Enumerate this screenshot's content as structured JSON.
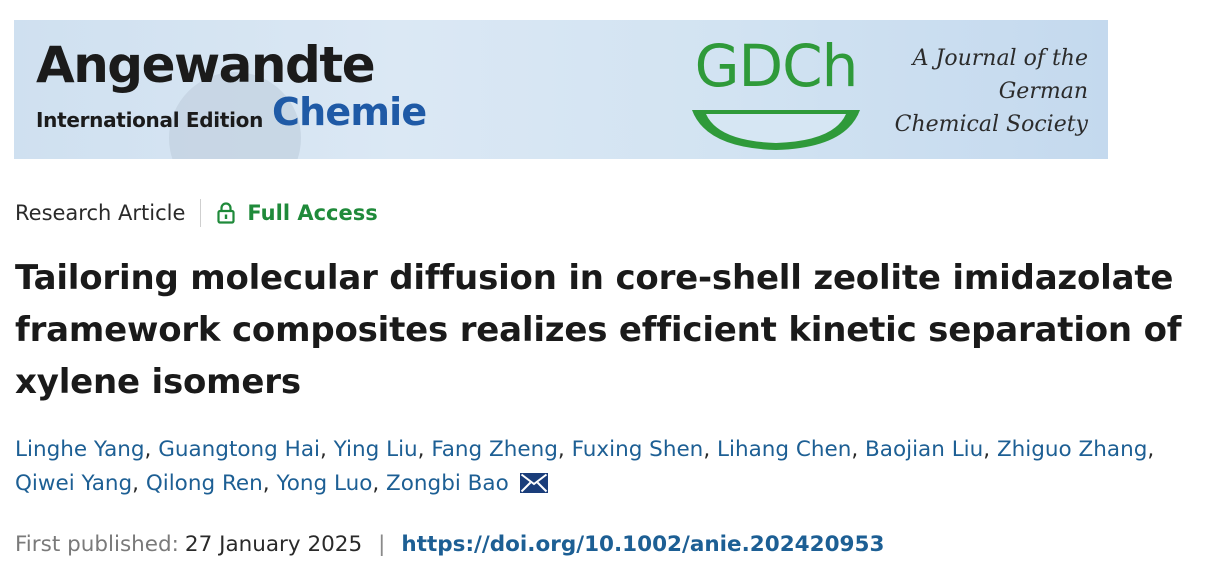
{
  "banner": {
    "journal_title": "Angewandte",
    "journal_edition": "International Edition",
    "journal_subtitle": "Chemie",
    "society_logo": "GDCh",
    "society_line1": "A Journal of the",
    "society_line2": "German",
    "society_line3": "Chemical Society",
    "brand_green": "#2f9a3a",
    "brand_blue": "#1f5aa6"
  },
  "article": {
    "type": "Research Article",
    "access_label": "Full Access",
    "access_icon": "lock-open-icon",
    "title": "Tailoring molecular diffusion in core-shell zeolite imidazolate framework composites realizes efficient kinetic separation of xylene isomers",
    "authors": [
      "Linghe Yang",
      "Guangtong Hai",
      "Ying Liu",
      "Fang Zheng",
      "Fuxing Shen",
      "Lihang Chen",
      "Baojian Liu",
      "Zhiguo Zhang",
      "Qiwei Yang",
      "Qilong Ren",
      "Yong Luo",
      "Zongbi Bao"
    ],
    "corresponding_icon": "envelope-icon",
    "published_label": "First published:",
    "published_date": "27 January 2025",
    "separator": "|",
    "doi": "https://doi.org/10.1002/anie.202420953",
    "link_color": "#1d5f94",
    "access_color": "#1f8a3a"
  }
}
